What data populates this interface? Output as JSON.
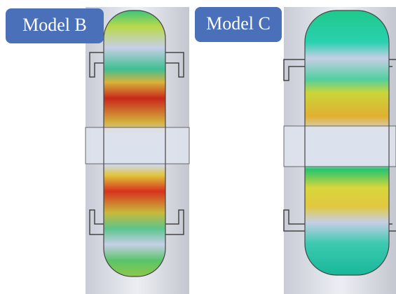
{
  "labels": {
    "left": "Model B",
    "right": "Model C"
  }
}
